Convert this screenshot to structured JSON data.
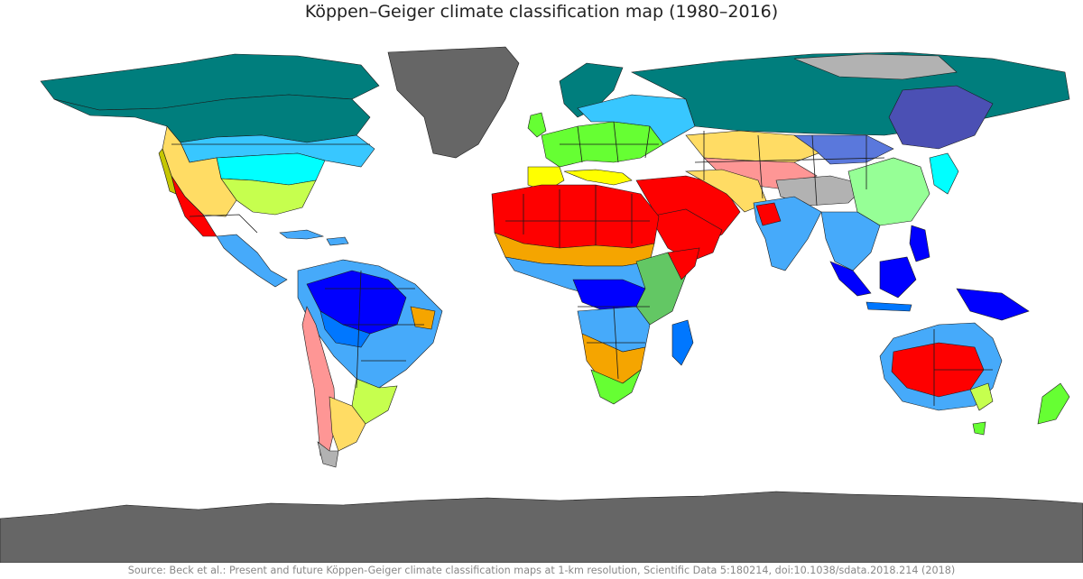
{
  "title": "Köppen–Geiger climate classification map (1980–2016)",
  "source": "Source: Beck et al.: Present and future Köppen-Geiger climate classification maps at 1-km resolution, Scientific Data 5:180214, doi:10.1038/sdata.2018.214 (2018)",
  "colors": {
    "Af": "#0000fe",
    "Am": "#0077ff",
    "Aw": "#46aafa",
    "BWh": "#fe0000",
    "BWk": "#fe9695",
    "BSh": "#f5a500",
    "BSk": "#ffdc64",
    "Csa": "#ffff00",
    "Csb": "#c6c700",
    "Cwa": "#96ff96",
    "Cwb": "#63c764",
    "Cfa": "#c6ff4e",
    "Cfb": "#66ff33",
    "Dsb": "#ff00fe",
    "Dwa": "#aab0ff",
    "Dwb": "#5a78dc",
    "Dwc": "#4b50b4",
    "Dfa": "#00ffff",
    "Dfb": "#38c7ff",
    "Dfc": "#007e7d",
    "Dfd": "#00455e",
    "ET": "#b2b2b2",
    "EF": "#666666",
    "border": "#1a1a1a",
    "ocean": "#ffffff"
  }
}
